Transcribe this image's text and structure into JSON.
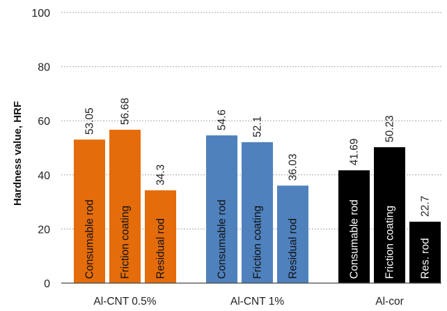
{
  "chart_data": {
    "type": "bar",
    "title": "",
    "xlabel": "",
    "ylabel": "Hardness value, HRF",
    "ylim": [
      0,
      100
    ],
    "yticks": [
      0,
      20,
      40,
      60,
      80,
      100
    ],
    "grid": true,
    "legend": "none",
    "categories": [
      "Al-CNT 0.5%",
      "Al-CNT 1%",
      "Al-cor"
    ],
    "groups": [
      {
        "category": "Al-CNT 0.5%",
        "color": "#E46C0A",
        "bars": [
          {
            "label": "Consumable rod",
            "value": 53.05,
            "value_text": "53.05"
          },
          {
            "label": "Friction coating",
            "value": 56.68,
            "value_text": "56.68"
          },
          {
            "label": "Residual rod",
            "value": 34.3,
            "value_text": "34.3"
          }
        ]
      },
      {
        "category": "Al-CNT 1%",
        "color": "#4F81BD",
        "bars": [
          {
            "label": "Consumable rod",
            "value": 54.6,
            "value_text": "54.6"
          },
          {
            "label": "Friction coating",
            "value": 52.1,
            "value_text": "52.1"
          },
          {
            "label": "Residual rod",
            "value": 36.03,
            "value_text": "36.03"
          }
        ]
      },
      {
        "category": "Al-cor",
        "color": "#000000",
        "bars": [
          {
            "label": "Consumable rod",
            "value": 41.69,
            "value_text": "41.69"
          },
          {
            "label": "Friction coating",
            "value": 50.23,
            "value_text": "50.23"
          },
          {
            "label": "Res. rod",
            "value": 22.7,
            "value_text": "22.7"
          }
        ]
      }
    ]
  }
}
